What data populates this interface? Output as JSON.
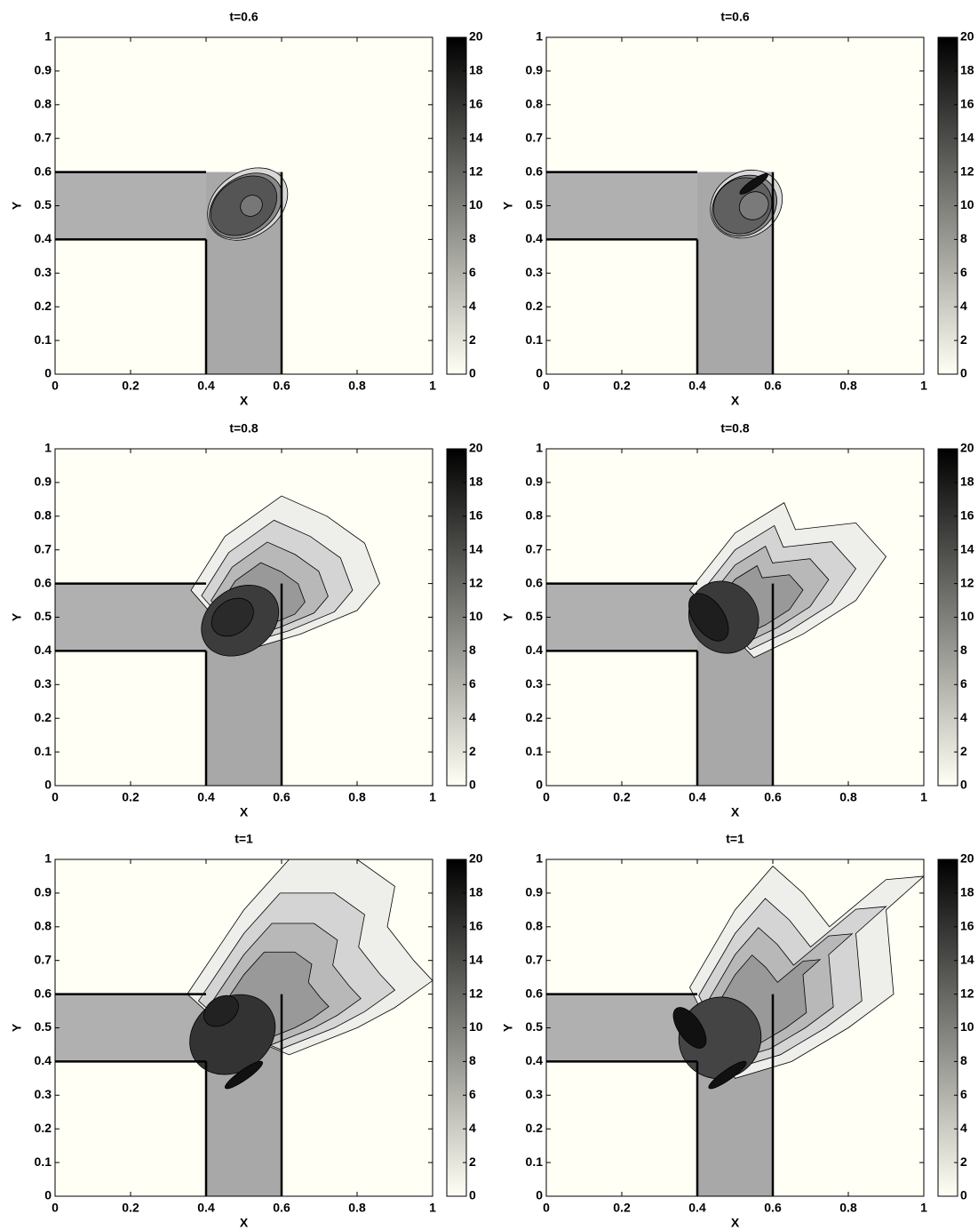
{
  "chart_data": [
    {
      "type": "contour",
      "title": "t=0.6",
      "xlabel": "X",
      "ylabel": "Y",
      "xlim": [
        0,
        1
      ],
      "ylim": [
        0,
        1
      ],
      "xticks": [
        0,
        0.2,
        0.4,
        0.6,
        0.8,
        1
      ],
      "yticks": [
        0,
        0.1,
        0.2,
        0.3,
        0.4,
        0.5,
        0.6,
        0.7,
        0.8,
        0.9,
        1
      ],
      "colorbar": {
        "clim": [
          0,
          20
        ],
        "ticks": [
          0,
          2,
          4,
          6,
          8,
          10,
          12,
          14,
          16,
          18,
          20
        ],
        "colormap": [
          "#fffff5",
          "#000000"
        ]
      }
    },
    {
      "type": "contour",
      "title": "t=0.6",
      "xlabel": "X",
      "ylabel": "Y",
      "xlim": [
        0,
        1
      ],
      "ylim": [
        0,
        1
      ],
      "xticks": [
        0,
        0.2,
        0.4,
        0.6,
        0.8,
        1
      ],
      "yticks": [
        0,
        0.1,
        0.2,
        0.3,
        0.4,
        0.5,
        0.6,
        0.7,
        0.8,
        0.9,
        1
      ],
      "colorbar": {
        "clim": [
          0,
          20
        ],
        "ticks": [
          0,
          2,
          4,
          6,
          8,
          10,
          12,
          14,
          16,
          18,
          20
        ],
        "colormap": [
          "#fffff5",
          "#000000"
        ]
      }
    },
    {
      "type": "contour",
      "title": "t=0.8",
      "xlabel": "X",
      "ylabel": "Y",
      "xlim": [
        0,
        1
      ],
      "ylim": [
        0,
        1
      ],
      "xticks": [
        0,
        0.2,
        0.4,
        0.6,
        0.8,
        1
      ],
      "yticks": [
        0,
        0.1,
        0.2,
        0.3,
        0.4,
        0.5,
        0.6,
        0.7,
        0.8,
        0.9,
        1
      ],
      "colorbar": {
        "clim": [
          0,
          20
        ],
        "ticks": [
          0,
          2,
          4,
          6,
          8,
          10,
          12,
          14,
          16,
          18,
          20
        ],
        "colormap": [
          "#fffff5",
          "#000000"
        ]
      }
    },
    {
      "type": "contour",
      "title": "t=0.8",
      "xlabel": "X",
      "ylabel": "Y",
      "xlim": [
        0,
        1
      ],
      "ylim": [
        0,
        1
      ],
      "xticks": [
        0,
        0.2,
        0.4,
        0.6,
        0.8,
        1
      ],
      "yticks": [
        0,
        0.1,
        0.2,
        0.3,
        0.4,
        0.5,
        0.6,
        0.7,
        0.8,
        0.9,
        1
      ],
      "colorbar": {
        "clim": [
          0,
          20
        ],
        "ticks": [
          0,
          2,
          4,
          6,
          8,
          10,
          12,
          14,
          16,
          18,
          20
        ],
        "colormap": [
          "#fffff5",
          "#000000"
        ]
      }
    },
    {
      "type": "contour",
      "title": "t=1",
      "xlabel": "X",
      "ylabel": "Y",
      "xlim": [
        0,
        1
      ],
      "ylim": [
        0,
        1
      ],
      "xticks": [
        0,
        0.2,
        0.4,
        0.6,
        0.8,
        1
      ],
      "yticks": [
        0,
        0.1,
        0.2,
        0.3,
        0.4,
        0.5,
        0.6,
        0.7,
        0.8,
        0.9,
        1
      ],
      "colorbar": {
        "clim": [
          0,
          20
        ],
        "ticks": [
          0,
          2,
          4,
          6,
          8,
          10,
          12,
          14,
          16,
          18,
          20
        ],
        "colormap": [
          "#fffff5",
          "#000000"
        ]
      }
    },
    {
      "type": "contour",
      "title": "t=1",
      "xlabel": "X",
      "ylabel": "Y",
      "xlim": [
        0,
        1
      ],
      "ylim": [
        0,
        1
      ],
      "xticks": [
        0,
        0.2,
        0.4,
        0.6,
        0.8,
        1
      ],
      "yticks": [
        0,
        0.1,
        0.2,
        0.3,
        0.4,
        0.5,
        0.6,
        0.7,
        0.8,
        0.9,
        1
      ],
      "colorbar": {
        "clim": [
          0,
          20
        ],
        "ticks": [
          0,
          2,
          4,
          6,
          8,
          10,
          12,
          14,
          16,
          18,
          20
        ],
        "colormap": [
          "#fffff5",
          "#000000"
        ]
      }
    }
  ]
}
